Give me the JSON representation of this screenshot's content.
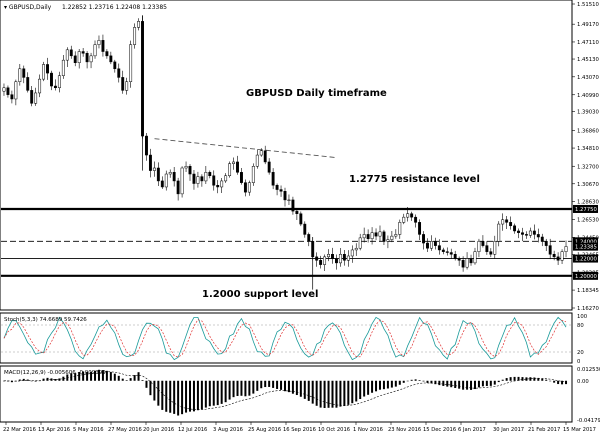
{
  "header": {
    "symbol": "GBPUSD,Daily",
    "ohlc": "1.22852 1.23716 1.22408 1.23385"
  },
  "chart_data": [
    {
      "type": "candlestick",
      "title": "GBPUSD Daily timeframe",
      "ylim": [
        1.1627,
        1.5151
      ],
      "y_ticks": [
        "1.51510",
        "1.49170",
        "1.47110",
        "1.45130",
        "1.43070",
        "1.40990",
        "1.39030",
        "1.36860",
        "1.34810",
        "1.32700",
        "1.30670",
        "1.28630",
        "1.26530",
        "1.24450",
        "1.22465",
        "1.20385",
        "1.18345",
        "1.16270"
      ],
      "x_ticks": [
        "22 Mar 2016",
        "13 Apr 2016",
        "5 May 2016",
        "27 May 2016",
        "20 Jun 2016",
        "12 Jul 2016",
        "3 Aug 2016",
        "25 Aug 2016",
        "16 Sep 2016",
        "10 Oct 2016",
        "1 Nov 2016",
        "23 Nov 2016",
        "15 Dec 2016",
        "6 Jan 2017",
        "30 Jan 2017",
        "21 Feb 2017",
        "15 Mar 2017"
      ],
      "price_labels": [
        "1.27750",
        "1.24000",
        "1.23385",
        "1.22000",
        "1.20000"
      ],
      "resistance": {
        "value": 1.2775,
        "label": "1.2775 resistance level"
      },
      "support": {
        "value": 1.2,
        "label": "1.2000 support level"
      },
      "dashed_level": 1.24,
      "thin_level": 1.22,
      "trendline": [
        {
          "date": "2016-06-27",
          "value": 1.359
        },
        {
          "date": "2016-10-21",
          "value": 1.337
        }
      ],
      "closes": [
        1.418,
        1.41,
        1.405,
        1.425,
        1.44,
        1.43,
        1.415,
        1.4,
        1.412,
        1.428,
        1.445,
        1.435,
        1.42,
        1.418,
        1.432,
        1.45,
        1.462,
        1.455,
        1.447,
        1.46,
        1.458,
        1.448,
        1.455,
        1.468,
        1.473,
        1.46,
        1.455,
        1.448,
        1.44,
        1.43,
        1.415,
        1.425,
        1.468,
        1.488,
        1.495,
        1.362,
        1.34,
        1.322,
        1.325,
        1.31,
        1.303,
        1.318,
        1.32,
        1.31,
        1.295,
        1.325,
        1.327,
        1.318,
        1.307,
        1.315,
        1.31,
        1.32,
        1.316,
        1.305,
        1.303,
        1.31,
        1.316,
        1.33,
        1.332,
        1.32,
        1.308,
        1.297,
        1.308,
        1.327,
        1.34,
        1.345,
        1.332,
        1.32,
        1.305,
        1.3,
        1.298,
        1.288,
        1.288,
        1.275,
        1.272,
        1.26,
        1.248,
        1.24,
        1.222,
        1.218,
        1.213,
        1.222,
        1.225,
        1.22,
        1.215,
        1.225,
        1.218,
        1.223,
        1.23,
        1.232,
        1.244,
        1.248,
        1.243,
        1.25,
        1.246,
        1.251,
        1.24,
        1.242,
        1.246,
        1.248,
        1.262,
        1.268,
        1.272,
        1.268,
        1.262,
        1.248,
        1.238,
        1.232,
        1.24,
        1.235,
        1.23,
        1.228,
        1.227,
        1.225,
        1.22,
        1.218,
        1.21,
        1.22,
        1.215,
        1.228,
        1.24,
        1.235,
        1.228,
        1.225,
        1.24,
        1.26,
        1.265,
        1.262,
        1.258,
        1.252,
        1.25,
        1.248,
        1.247,
        1.252,
        1.248,
        1.245,
        1.24,
        1.235,
        1.225,
        1.222,
        1.218,
        1.228,
        1.234
      ],
      "start_date": "2016-03-22",
      "end_date": "2017-03-17"
    },
    {
      "type": "line",
      "label": "Stoch(5,3,3) 74.6689 59.7426",
      "ylim": [
        0,
        100
      ],
      "y_ticks": [
        "100",
        "80",
        "20",
        "0"
      ],
      "series": [
        {
          "name": "%K",
          "color": "#1a9a9a"
        },
        {
          "name": "%D",
          "color": "#e03030"
        }
      ]
    },
    {
      "type": "bar",
      "label": "MACD(12,26,9) -0.005606 -0.009399",
      "y_ticks": [
        "0.012530",
        "0.00",
        "-0.04179"
      ],
      "series": [
        {
          "name": "MACD"
        },
        {
          "name": "Signal"
        }
      ]
    }
  ]
}
